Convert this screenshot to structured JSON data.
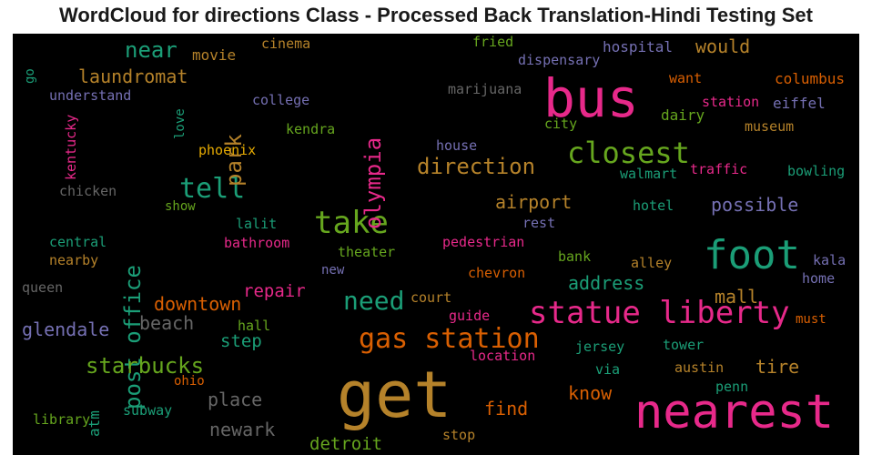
{
  "chart_data": {
    "type": "wordcloud",
    "title": "WordCloud for directions Class - Processed Back Translation-Hindi Testing Set",
    "background": "#000000",
    "words": [
      {
        "text": "get",
        "color": "#b5822a"
      },
      {
        "text": "nearest",
        "color": "#e7298a"
      },
      {
        "text": "bus",
        "color": "#e7298a"
      },
      {
        "text": "foot",
        "color": "#1b9e77"
      },
      {
        "text": "statue liberty",
        "color": "#e7298a"
      },
      {
        "text": "take",
        "color": "#66a61e"
      },
      {
        "text": "gas station",
        "color": "#d95f02"
      },
      {
        "text": "closest",
        "color": "#66a61e"
      },
      {
        "text": "post office",
        "color": "#1b9e77"
      },
      {
        "text": "olympia",
        "color": "#e7298a"
      },
      {
        "text": "tell",
        "color": "#1b9e77"
      },
      {
        "text": "need",
        "color": "#1b9e77"
      },
      {
        "text": "direction",
        "color": "#b5822a"
      },
      {
        "text": "park",
        "color": "#b5822a"
      },
      {
        "text": "near",
        "color": "#1b9e77"
      },
      {
        "text": "laundromat",
        "color": "#b5822a"
      },
      {
        "text": "starbucks",
        "color": "#66a61e"
      },
      {
        "text": "downtown",
        "color": "#d95f02"
      },
      {
        "text": "glendale",
        "color": "#7570b3"
      },
      {
        "text": "beach",
        "color": "#666666"
      },
      {
        "text": "repair",
        "color": "#e7298a"
      },
      {
        "text": "address",
        "color": "#1b9e77"
      },
      {
        "text": "mall",
        "color": "#b5822a"
      },
      {
        "text": "airport",
        "color": "#b5822a"
      },
      {
        "text": "possible",
        "color": "#7570b3"
      },
      {
        "text": "would",
        "color": "#b5822a"
      },
      {
        "text": "find",
        "color": "#d95f02"
      },
      {
        "text": "know",
        "color": "#d95f02"
      },
      {
        "text": "place",
        "color": "#666666"
      },
      {
        "text": "newark",
        "color": "#666666"
      },
      {
        "text": "detroit",
        "color": "#66a61e"
      },
      {
        "text": "tire",
        "color": "#b5822a"
      },
      {
        "text": "step",
        "color": "#1b9e77"
      },
      {
        "text": "atm",
        "color": "#1b9e77"
      },
      {
        "text": "movie",
        "color": "#b5822a"
      },
      {
        "text": "cinema",
        "color": "#b5822a"
      },
      {
        "text": "fried",
        "color": "#66a61e"
      },
      {
        "text": "hospital",
        "color": "#7570b3"
      },
      {
        "text": "dispensary",
        "color": "#7570b3"
      },
      {
        "text": "marijuana",
        "color": "#666666"
      },
      {
        "text": "want",
        "color": "#d95f02"
      },
      {
        "text": "columbus",
        "color": "#d95f02"
      },
      {
        "text": "station",
        "color": "#e7298a"
      },
      {
        "text": "eiffel",
        "color": "#7570b3"
      },
      {
        "text": "dairy",
        "color": "#66a61e"
      },
      {
        "text": "city",
        "color": "#66a61e"
      },
      {
        "text": "museum",
        "color": "#b5822a"
      },
      {
        "text": "go",
        "color": "#1b9e77"
      },
      {
        "text": "understand",
        "color": "#7570b3"
      },
      {
        "text": "college",
        "color": "#7570b3"
      },
      {
        "text": "kendra",
        "color": "#66a61e"
      },
      {
        "text": "love",
        "color": "#1b9e77"
      },
      {
        "text": "phoenix",
        "color": "#e6ab02"
      },
      {
        "text": "kentucky",
        "color": "#e7298a"
      },
      {
        "text": "chicken",
        "color": "#666666"
      },
      {
        "text": "show",
        "color": "#66a61e"
      },
      {
        "text": "house",
        "color": "#7570b3"
      },
      {
        "text": "walmart",
        "color": "#1b9e77"
      },
      {
        "text": "traffic",
        "color": "#e7298a"
      },
      {
        "text": "bowling",
        "color": "#1b9e77"
      },
      {
        "text": "hotel",
        "color": "#1b9e77"
      },
      {
        "text": "rest",
        "color": "#7570b3"
      },
      {
        "text": "lalit",
        "color": "#1b9e77"
      },
      {
        "text": "central",
        "color": "#1b9e77"
      },
      {
        "text": "bathroom",
        "color": "#e7298a"
      },
      {
        "text": "theater",
        "color": "#66a61e"
      },
      {
        "text": "pedestrian",
        "color": "#e7298a"
      },
      {
        "text": "nearby",
        "color": "#b5822a"
      },
      {
        "text": "bank",
        "color": "#66a61e"
      },
      {
        "text": "alley",
        "color": "#b5822a"
      },
      {
        "text": "kala",
        "color": "#7570b3"
      },
      {
        "text": "new",
        "color": "#7570b3"
      },
      {
        "text": "chevron",
        "color": "#d95f02"
      },
      {
        "text": "home",
        "color": "#7570b3"
      },
      {
        "text": "queen",
        "color": "#666666"
      },
      {
        "text": "court",
        "color": "#b5822a"
      },
      {
        "text": "guide",
        "color": "#e7298a"
      },
      {
        "text": "hall",
        "color": "#66a61e"
      },
      {
        "text": "must",
        "color": "#d95f02"
      },
      {
        "text": "jersey",
        "color": "#1b9e77"
      },
      {
        "text": "tower",
        "color": "#1b9e77"
      },
      {
        "text": "location",
        "color": "#e7298a"
      },
      {
        "text": "ohio",
        "color": "#d95f02"
      },
      {
        "text": "via",
        "color": "#1b9e77"
      },
      {
        "text": "austin",
        "color": "#b5822a"
      },
      {
        "text": "penn",
        "color": "#1b9e77"
      },
      {
        "text": "subway",
        "color": "#1b9e77"
      },
      {
        "text": "library",
        "color": "#66a61e"
      },
      {
        "text": "stop",
        "color": "#b5822a"
      }
    ]
  }
}
